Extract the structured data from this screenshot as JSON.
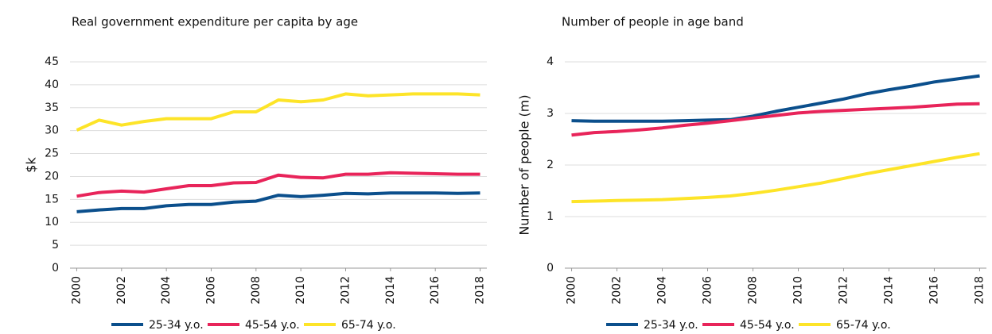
{
  "chart_data": [
    {
      "type": "line",
      "title": "Real government expenditure per capita by age",
      "ylabel": "$k",
      "x": [
        2000,
        2001,
        2002,
        2003,
        2004,
        2005,
        2006,
        2007,
        2008,
        2009,
        2010,
        2011,
        2012,
        2013,
        2014,
        2015,
        2016,
        2017,
        2018
      ],
      "xlim": [
        1999.7,
        2018.3
      ],
      "xticks": [
        2000,
        2002,
        2004,
        2006,
        2008,
        2010,
        2012,
        2014,
        2016,
        2018
      ],
      "ylim": [
        0,
        45
      ],
      "yticks": [
        0,
        5,
        10,
        15,
        20,
        25,
        30,
        35,
        40,
        45
      ],
      "grid": true,
      "series": [
        {
          "name": "25-34 y.o.",
          "color": "#0b4f8c",
          "values": [
            12.3,
            12.7,
            13.0,
            13.0,
            13.6,
            13.9,
            13.9,
            14.4,
            14.6,
            15.9,
            15.6,
            15.9,
            16.3,
            16.2,
            16.4,
            16.4,
            16.4,
            16.3,
            16.4
          ]
        },
        {
          "name": "45-54 y.o.",
          "color": "#e8245a",
          "values": [
            15.7,
            16.5,
            16.8,
            16.6,
            17.3,
            18.0,
            18.0,
            18.6,
            18.7,
            20.3,
            19.8,
            19.7,
            20.5,
            20.5,
            20.8,
            20.7,
            20.6,
            20.5,
            20.5
          ]
        },
        {
          "name": "65-74 y.o.",
          "color": "#fde428",
          "values": [
            30.1,
            32.3,
            31.2,
            32.0,
            32.6,
            32.6,
            32.6,
            34.1,
            34.1,
            36.7,
            36.3,
            36.7,
            38.0,
            37.6,
            37.8,
            38.0,
            38.0,
            38.0,
            37.8
          ]
        }
      ]
    },
    {
      "type": "line",
      "title": "Number of people in age band",
      "ylabel": "Number of people (m)",
      "x": [
        2000,
        2001,
        2002,
        2003,
        2004,
        2005,
        2006,
        2007,
        2008,
        2009,
        2010,
        2011,
        2012,
        2013,
        2014,
        2015,
        2016,
        2017,
        2018
      ],
      "xlim": [
        1999.7,
        2018.3
      ],
      "xticks": [
        2000,
        2002,
        2004,
        2006,
        2008,
        2010,
        2012,
        2014,
        2016,
        2018
      ],
      "ylim": [
        0,
        4
      ],
      "yticks": [
        0,
        1,
        2,
        3,
        4
      ],
      "grid": true,
      "series": [
        {
          "name": "25-34 y.o.",
          "color": "#0b4f8c",
          "values": [
            2.86,
            2.85,
            2.85,
            2.85,
            2.85,
            2.86,
            2.87,
            2.88,
            2.95,
            3.04,
            3.12,
            3.2,
            3.28,
            3.38,
            3.46,
            3.53,
            3.61,
            3.67,
            3.73
          ]
        },
        {
          "name": "45-54 y.o.",
          "color": "#e8245a",
          "values": [
            2.58,
            2.63,
            2.65,
            2.68,
            2.72,
            2.77,
            2.81,
            2.86,
            2.91,
            2.96,
            3.01,
            3.04,
            3.06,
            3.08,
            3.1,
            3.12,
            3.15,
            3.18,
            3.19
          ]
        },
        {
          "name": "65-74 y.o.",
          "color": "#fde428",
          "values": [
            1.29,
            1.3,
            1.31,
            1.32,
            1.33,
            1.35,
            1.37,
            1.4,
            1.45,
            1.51,
            1.58,
            1.65,
            1.74,
            1.83,
            1.91,
            1.99,
            2.07,
            2.15,
            2.22
          ]
        }
      ]
    }
  ]
}
